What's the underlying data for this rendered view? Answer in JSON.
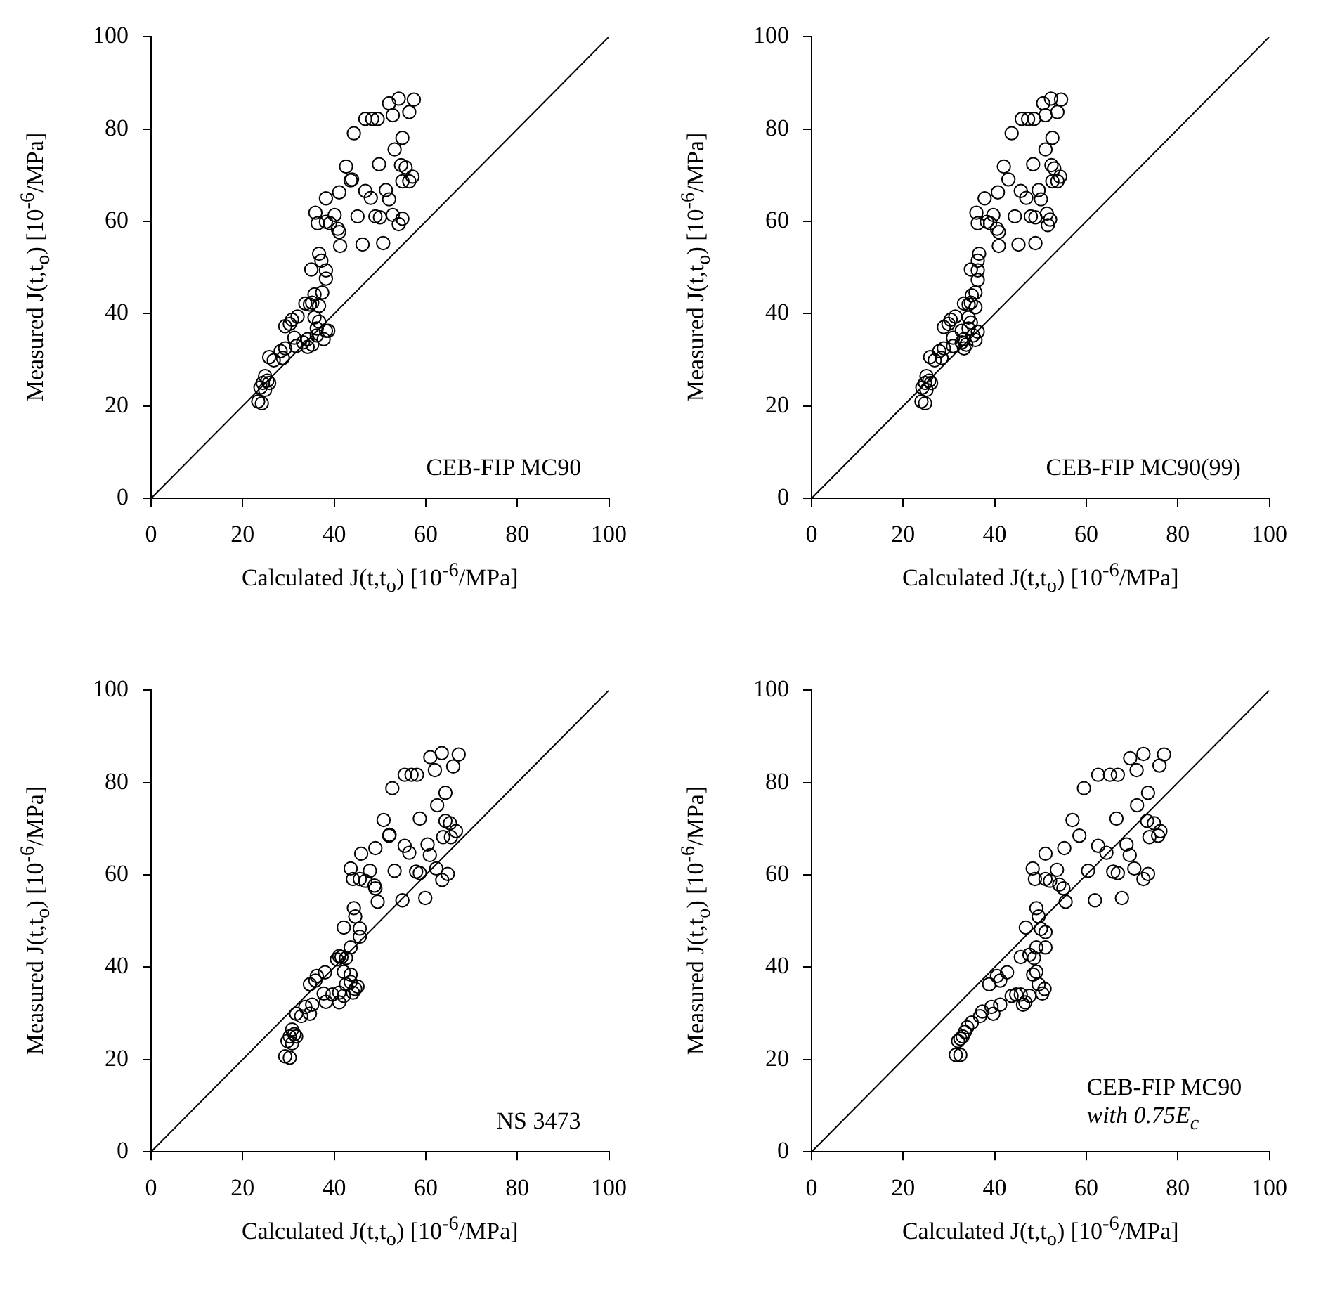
{
  "chart_data": [
    {
      "type": "scatter",
      "xlabel": "Calculated J(t,t$_{o}$) [10$^{-6}$/MPa]",
      "ylabel": "Measured J(t,t$_{o}$) [10$^{-6}$/MPa]",
      "xlim": [
        0,
        100
      ],
      "ylim": [
        0,
        100
      ],
      "xticks": [
        0,
        20,
        40,
        60,
        80,
        100
      ],
      "yticks": [
        0,
        20,
        40,
        60,
        80,
        100
      ],
      "annotations": [
        "CEB-FIP MC90"
      ],
      "series": [
        {
          "type": "scatter",
          "marker": "circle",
          "color": "#000000",
          "x": [
            52.0,
            54.1,
            57.4,
            56.4,
            52.8,
            46.8,
            48.3,
            49.5,
            44.3,
            54.9,
            53.2,
            42.6,
            49.8,
            54.6,
            55.6,
            43.6,
            43.9,
            57.1,
            54.9,
            56.4,
            41.1,
            38.2,
            46.8,
            48.0,
            51.3,
            52.0,
            35.9,
            40.1,
            45.1,
            49.0,
            50.0,
            52.8,
            54.9,
            54.1,
            36.4,
            38.2,
            39.1,
            40.8,
            41.1,
            41.3,
            46.2,
            50.7,
            36.7,
            37.2,
            35.0,
            38.2,
            38.2,
            37.4,
            35.7,
            33.7,
            34.7,
            35.2,
            36.7,
            32.0,
            30.8,
            29.3,
            30.3,
            35.7,
            36.7,
            38.2,
            36.2,
            37.7,
            34.2,
            33.2,
            35.2,
            34.2,
            31.3,
            31.7,
            29.3,
            28.3,
            28.8,
            25.8,
            26.8,
            24.9,
            25.4,
            24.4,
            25.8,
            23.9,
            24.9,
            23.4,
            24.2,
            38.7,
            36.2
          ],
          "values": [
            85.6,
            86.6,
            86.4,
            83.7,
            83.0,
            82.2,
            82.2,
            82.2,
            79.1,
            78.1,
            75.6,
            71.9,
            72.4,
            72.2,
            71.7,
            68.9,
            69.1,
            69.7,
            68.7,
            68.7,
            66.3,
            65.0,
            66.6,
            65.1,
            66.8,
            64.8,
            61.9,
            61.4,
            61.1,
            61.1,
            60.9,
            61.4,
            60.6,
            59.4,
            59.6,
            59.9,
            59.6,
            58.4,
            57.7,
            54.7,
            55.0,
            55.3,
            53.0,
            51.5,
            49.6,
            49.4,
            47.6,
            44.6,
            44.2,
            42.2,
            42.0,
            42.4,
            41.7,
            39.4,
            38.7,
            37.3,
            37.8,
            39.2,
            38.3,
            36.3,
            35.3,
            34.5,
            34.5,
            33.8,
            33.3,
            32.8,
            34.8,
            33.0,
            32.5,
            31.9,
            30.4,
            30.6,
            29.9,
            26.5,
            25.5,
            25.0,
            25.0,
            24.0,
            23.5,
            21.0,
            20.6,
            36.3,
            36.8
          ]
        },
        {
          "type": "line",
          "color": "#000000",
          "x": [
            0,
            100
          ],
          "values": [
            0,
            100
          ]
        }
      ]
    },
    {
      "type": "scatter",
      "xlabel": "Calculated J(t,t$_{o}$) [10$^{-6}$/MPa]",
      "ylabel": "Measured J(t,t$_{o}$) [10$^{-6}$/MPa]",
      "xlim": [
        0,
        100
      ],
      "ylim": [
        0,
        100
      ],
      "xticks": [
        0,
        20,
        40,
        60,
        80,
        100
      ],
      "yticks": [
        0,
        20,
        40,
        60,
        80,
        100
      ],
      "annotations": [
        "CEB-FIP MC90(99)"
      ],
      "series": [
        {
          "type": "scatter",
          "marker": "circle",
          "color": "#000000",
          "x": [
            50.6,
            52.3,
            54.5,
            53.7,
            51.1,
            45.9,
            47.3,
            48.6,
            43.7,
            52.6,
            51.1,
            42.0,
            48.4,
            52.4,
            53.0,
            43.0,
            54.3,
            52.6,
            53.7,
            37.8,
            40.7,
            45.7,
            46.9,
            49.6,
            50.1,
            36.0,
            39.7,
            44.4,
            47.9,
            48.9,
            51.4,
            52.1,
            51.6,
            36.3,
            38.3,
            39.0,
            40.5,
            40.9,
            40.9,
            45.2,
            48.9,
            36.6,
            36.3,
            34.8,
            36.3,
            36.3,
            35.8,
            35.0,
            33.3,
            34.3,
            34.8,
            35.8,
            31.4,
            30.4,
            28.9,
            29.9,
            34.3,
            34.8,
            36.3,
            35.3,
            35.8,
            33.3,
            32.8,
            33.8,
            33.3,
            30.9,
            30.9,
            28.9,
            27.9,
            28.4,
            25.9,
            26.9,
            25.1,
            25.7,
            24.8,
            26.1,
            24.2,
            25.1,
            24.0,
            24.8,
            32.8,
            34.3
          ],
          "values": [
            85.6,
            86.6,
            86.4,
            83.7,
            83.0,
            82.2,
            82.2,
            82.2,
            79.1,
            78.1,
            75.6,
            71.9,
            72.4,
            72.2,
            71.5,
            69.1,
            69.7,
            68.7,
            68.7,
            65.0,
            66.3,
            66.6,
            65.1,
            66.8,
            64.8,
            61.9,
            61.4,
            61.1,
            61.1,
            60.9,
            61.7,
            60.4,
            59.2,
            59.6,
            59.9,
            59.6,
            58.4,
            57.7,
            54.7,
            55.0,
            55.3,
            53.0,
            51.5,
            49.6,
            49.4,
            47.3,
            44.6,
            44.0,
            42.2,
            42.0,
            42.4,
            41.4,
            39.4,
            38.7,
            37.1,
            37.8,
            39.2,
            38.1,
            36.1,
            35.3,
            34.3,
            34.5,
            33.8,
            33.3,
            32.5,
            34.8,
            33.0,
            32.5,
            31.9,
            30.4,
            30.6,
            29.9,
            26.5,
            25.5,
            25.0,
            25.0,
            24.0,
            23.5,
            21.0,
            20.6,
            36.3,
            36.8
          ]
        },
        {
          "type": "line",
          "color": "#000000",
          "x": [
            0,
            100
          ],
          "values": [
            0,
            100
          ]
        }
      ]
    },
    {
      "type": "scatter",
      "xlabel": "Calculated J(t,t$_{o}$) [10$^{-6}$/MPa]",
      "ylabel": "Measured J(t,t$_{o}$) [10$^{-6}$/MPa]",
      "xlim": [
        0,
        100
      ],
      "ylim": [
        0,
        100
      ],
      "xticks": [
        0,
        20,
        40,
        60,
        80,
        100
      ],
      "yticks": [
        0,
        20,
        40,
        60,
        80,
        100
      ],
      "annotations": [
        "NS 3473"
      ],
      "series": [
        {
          "type": "scatter",
          "marker": "circle",
          "color": "#000000",
          "x": [
            61.0,
            63.5,
            67.2,
            66.0,
            62.0,
            55.4,
            56.9,
            58.1,
            52.7,
            64.3,
            62.5,
            50.8,
            58.7,
            64.3,
            65.3,
            66.6,
            63.8,
            65.5,
            52.0,
            52.1,
            49.0,
            45.9,
            55.4,
            56.4,
            60.4,
            60.9,
            43.6,
            47.8,
            53.2,
            57.9,
            58.7,
            62.3,
            64.8,
            63.6,
            44.1,
            45.6,
            46.8,
            48.8,
            49.0,
            49.5,
            54.9,
            59.9,
            44.3,
            44.6,
            42.1,
            45.6,
            45.6,
            43.6,
            41.6,
            40.6,
            41.1,
            42.6,
            38.0,
            36.2,
            34.7,
            35.9,
            42.1,
            43.6,
            45.1,
            44.1,
            44.6,
            41.1,
            39.6,
            42.1,
            41.1,
            37.7,
            38.2,
            35.2,
            33.7,
            34.7,
            31.7,
            32.8,
            30.8,
            31.3,
            30.3,
            31.7,
            29.8,
            30.8,
            29.3,
            30.3,
            42.6,
            43.6
          ],
          "values": [
            85.5,
            86.4,
            86.1,
            83.5,
            82.7,
            81.7,
            81.7,
            81.7,
            78.8,
            77.8,
            75.1,
            71.9,
            72.2,
            71.7,
            71.2,
            69.5,
            68.2,
            68.2,
            68.5,
            68.7,
            65.8,
            64.6,
            66.3,
            64.8,
            66.6,
            64.3,
            61.4,
            60.9,
            60.9,
            60.7,
            60.4,
            61.4,
            60.2,
            58.9,
            59.1,
            59.1,
            58.7,
            57.7,
            57.1,
            54.2,
            54.5,
            55.0,
            52.8,
            51.0,
            48.6,
            48.4,
            46.6,
            44.3,
            42.2,
            41.7,
            42.4,
            42.0,
            38.9,
            38.1,
            36.3,
            37.1,
            39.0,
            38.4,
            35.8,
            34.5,
            35.3,
            34.5,
            34.1,
            33.8,
            32.4,
            34.3,
            32.5,
            31.9,
            31.4,
            29.9,
            29.9,
            29.4,
            26.5,
            25.5,
            25.0,
            25.0,
            24.0,
            23.5,
            20.7,
            20.4,
            36.3,
            36.8
          ]
        },
        {
          "type": "line",
          "color": "#000000",
          "x": [
            0,
            100
          ],
          "values": [
            0,
            100
          ]
        }
      ]
    },
    {
      "type": "scatter",
      "xlabel": "Calculated J(t,t$_{o}$) [10$^{-6}$/MPa]",
      "ylabel": "Measured J(t,t$_{o}$) [10$^{-6}$/MPa]",
      "xlim": [
        0,
        100
      ],
      "ylim": [
        0,
        100
      ],
      "xticks": [
        0,
        20,
        40,
        60,
        80,
        100
      ],
      "yticks": [
        0,
        20,
        40,
        60,
        80,
        100
      ],
      "annotations": [
        "CEB-FIP MC90",
        "with 0.75E$_{c}$"
      ],
      "series": [
        {
          "type": "scatter",
          "marker": "circle",
          "color": "#000000",
          "x": [
            69.6,
            72.5,
            77.0,
            76.0,
            71.0,
            62.6,
            65.2,
            66.9,
            59.5,
            73.5,
            71.1,
            57.0,
            66.6,
            73.3,
            74.8,
            76.2,
            73.8,
            75.7,
            58.5,
            55.2,
            51.1,
            62.6,
            64.4,
            68.8,
            69.5,
            48.3,
            53.6,
            60.4,
            65.9,
            66.9,
            70.5,
            73.5,
            72.5,
            48.8,
            51.1,
            52.1,
            54.1,
            55.0,
            55.5,
            61.9,
            67.8,
            49.1,
            49.6,
            46.8,
            50.1,
            51.1,
            51.1,
            49.1,
            45.7,
            47.6,
            48.6,
            42.7,
            40.5,
            38.8,
            41.2,
            49.1,
            48.4,
            50.9,
            50.4,
            49.6,
            45.7,
            44.7,
            47.6,
            46.7,
            43.7,
            46.2,
            41.2,
            39.3,
            39.7,
            37.3,
            36.8,
            35.0,
            34.0,
            33.5,
            33.0,
            32.5,
            32.0,
            31.5,
            32.5
          ],
          "values": [
            85.3,
            86.2,
            86.1,
            83.7,
            82.7,
            81.7,
            81.7,
            81.7,
            78.8,
            77.8,
            75.1,
            71.9,
            72.2,
            71.7,
            71.2,
            69.5,
            68.2,
            68.5,
            68.5,
            65.8,
            64.6,
            66.3,
            64.8,
            66.6,
            64.3,
            61.4,
            61.1,
            60.9,
            60.7,
            60.4,
            61.4,
            60.2,
            59.1,
            59.1,
            59.1,
            58.7,
            57.9,
            57.1,
            54.2,
            54.5,
            55.0,
            52.8,
            51.0,
            48.6,
            48.3,
            47.6,
            44.3,
            44.3,
            42.2,
            42.7,
            42.0,
            38.9,
            38.1,
            36.3,
            37.1,
            39.0,
            38.4,
            35.3,
            34.3,
            36.3,
            34.1,
            34.1,
            33.8,
            32.4,
            33.8,
            31.9,
            31.9,
            31.4,
            29.9,
            30.4,
            29.4,
            28.0,
            27.0,
            26.0,
            25.0,
            24.5,
            24.0,
            21.0,
            21.0
          ]
        },
        {
          "type": "line",
          "color": "#000000",
          "x": [
            0,
            100
          ],
          "values": [
            0,
            100
          ]
        }
      ]
    }
  ]
}
